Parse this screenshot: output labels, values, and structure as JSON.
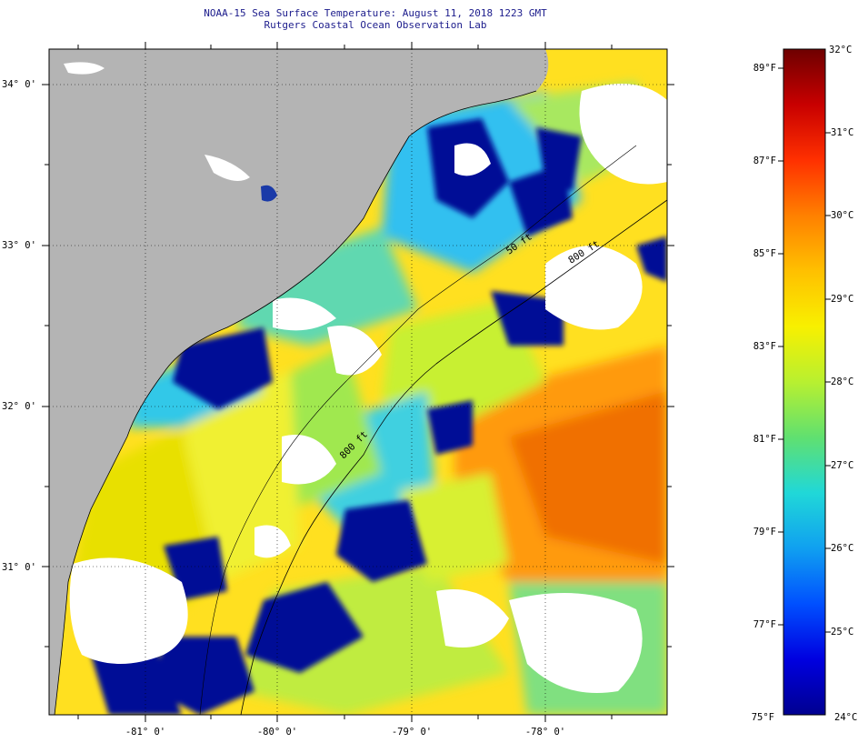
{
  "header": {
    "title_line1": "NOAA-15 Sea Surface Temperature:  August 11, 2018 1223 GMT",
    "title_line2": "Rutgers Coastal Ocean Observation Lab"
  },
  "map": {
    "lat_labels": [
      "34° 0'",
      "33° 0'",
      "32° 0'",
      "31° 0'"
    ],
    "lon_labels": [
      "-81° 0'",
      "-80° 0'",
      "-79° 0'",
      "-78° 0'"
    ],
    "isobath_labels": [
      "800 ft",
      "800 ft",
      "50 ft"
    ],
    "colors": {
      "land": "#b4b4b4",
      "cloud": "#ffffff",
      "warm": "#ff9a00",
      "mid": "#e8f000",
      "cool": "#26d4f0",
      "cold": "#000090"
    }
  },
  "colorbar": {
    "fahrenheit_labels": [
      "89°F",
      "87°F",
      "85°F",
      "83°F",
      "81°F",
      "79°F",
      "77°F",
      "75°F"
    ],
    "celsius_labels": [
      "32°C",
      "31°C",
      "30°C",
      "29°C",
      "28°C",
      "27°C",
      "26°C",
      "25°C",
      "24°C"
    ],
    "stops": [
      "#6e0000",
      "#c80000",
      "#ff3000",
      "#ff8000",
      "#ffc000",
      "#f8f000",
      "#b8f030",
      "#60e070",
      "#20d8d8",
      "#10a0f0",
      "#0050ff",
      "#0000e0",
      "#000090"
    ]
  }
}
